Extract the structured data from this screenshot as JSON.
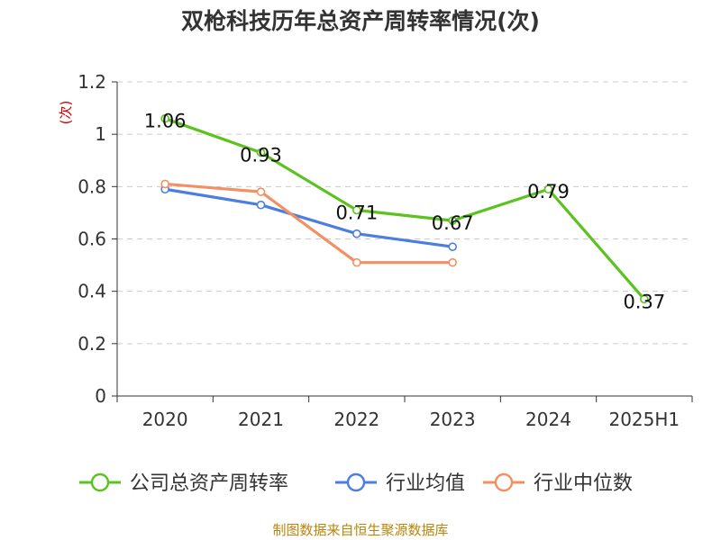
{
  "chart_data": {
    "type": "line",
    "title": "双枪科技历年总资产周转率情况(次)",
    "ylabel": "(次)",
    "xlabel": "",
    "categories": [
      "2020",
      "2021",
      "2022",
      "2023",
      "2024",
      "2025H1"
    ],
    "ylim": [
      0,
      1.2
    ],
    "yticks": [
      "0",
      "0.2",
      "0.4",
      "0.6",
      "0.8",
      "1",
      "1.2"
    ],
    "grid": true,
    "legend_position": "bottom",
    "series": [
      {
        "name": "公司总资产周转率",
        "color": "#5cc21f",
        "values": [
          1.06,
          0.93,
          0.71,
          0.67,
          0.79,
          0.37
        ],
        "labels": [
          "1.06",
          "0.93",
          "0.71",
          "0.67",
          "0.79",
          "0.37"
        ]
      },
      {
        "name": "行业均值",
        "color": "#4a7ee0",
        "values": [
          0.79,
          0.73,
          0.62,
          0.57,
          null,
          null
        ]
      },
      {
        "name": "行业中位数",
        "color": "#f39063",
        "values": [
          0.81,
          0.78,
          0.51,
          0.51,
          null,
          null
        ]
      }
    ]
  },
  "footer": {
    "source": "制图数据来自恒生聚源数据库"
  }
}
